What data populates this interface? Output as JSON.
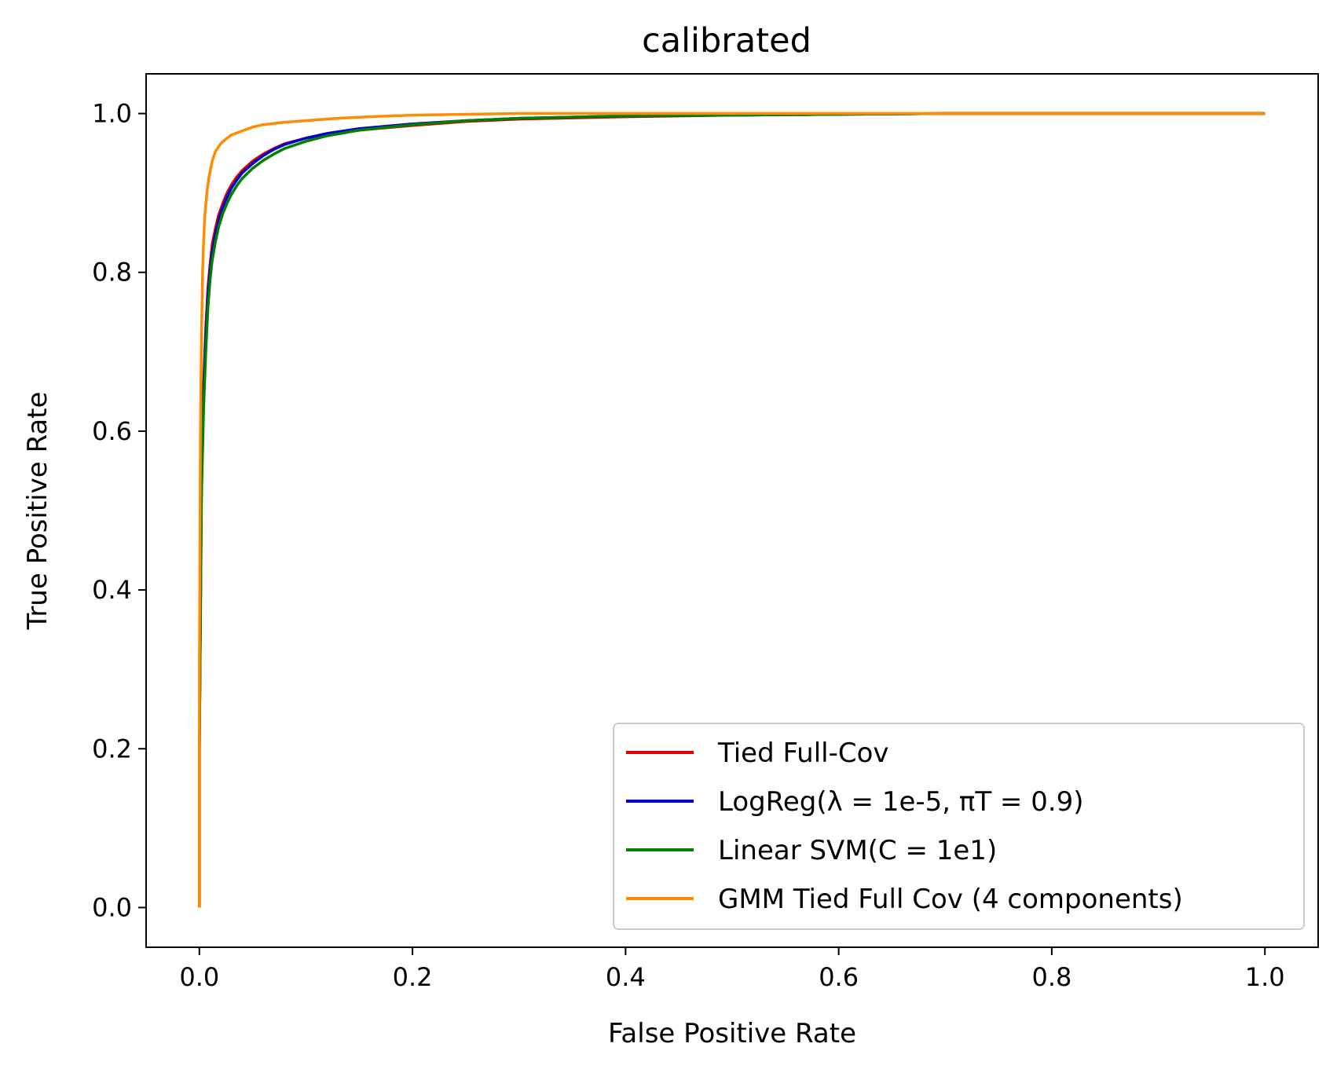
{
  "chart_data": {
    "type": "line",
    "title": "calibrated",
    "xlabel": "False Positive Rate",
    "ylabel": "True Positive Rate",
    "xlim": [
      -0.05,
      1.05
    ],
    "ylim": [
      -0.05,
      1.05
    ],
    "xticks": [
      0.0,
      0.2,
      0.4,
      0.6,
      0.8,
      1.0
    ],
    "xtick_labels": [
      "0.0",
      "0.2",
      "0.4",
      "0.6",
      "0.8",
      "1.0"
    ],
    "yticks": [
      0.0,
      0.2,
      0.4,
      0.6,
      0.8,
      1.0
    ],
    "ytick_labels": [
      "0.0",
      "0.2",
      "0.4",
      "0.6",
      "0.8",
      "1.0"
    ],
    "grid": false,
    "legend_position": "lower-right",
    "series": [
      {
        "name": "Tied Full-Cov",
        "color": "#e00000",
        "x": [
          0.0,
          0.0,
          0.002,
          0.004,
          0.006,
          0.008,
          0.01,
          0.012,
          0.015,
          0.018,
          0.022,
          0.026,
          0.03,
          0.035,
          0.04,
          0.05,
          0.06,
          0.07,
          0.08,
          0.1,
          0.12,
          0.15,
          0.2,
          0.25,
          0.3,
          0.4,
          0.5,
          0.6,
          0.7,
          0.8,
          0.9,
          1.0
        ],
        "y": [
          0.0,
          0.2,
          0.55,
          0.66,
          0.73,
          0.78,
          0.81,
          0.835,
          0.855,
          0.872,
          0.887,
          0.9,
          0.91,
          0.92,
          0.928,
          0.94,
          0.949,
          0.956,
          0.962,
          0.969,
          0.974,
          0.979,
          0.985,
          0.99,
          0.993,
          0.996,
          0.998,
          0.999,
          1.0,
          1.0,
          1.0,
          1.0
        ]
      },
      {
        "name": "LogReg(λ = 1e-5, πT = 0.9)",
        "color": "#0000d0",
        "x": [
          0.0,
          0.0,
          0.002,
          0.004,
          0.006,
          0.008,
          0.01,
          0.012,
          0.015,
          0.018,
          0.022,
          0.026,
          0.03,
          0.035,
          0.04,
          0.05,
          0.06,
          0.07,
          0.08,
          0.1,
          0.12,
          0.15,
          0.2,
          0.25,
          0.3,
          0.4,
          0.5,
          0.6,
          0.7,
          0.8,
          0.9,
          1.0
        ],
        "y": [
          0.0,
          0.2,
          0.54,
          0.65,
          0.72,
          0.77,
          0.8,
          0.825,
          0.848,
          0.866,
          0.882,
          0.895,
          0.906,
          0.916,
          0.925,
          0.937,
          0.947,
          0.955,
          0.961,
          0.969,
          0.975,
          0.981,
          0.987,
          0.991,
          0.994,
          0.997,
          0.998,
          0.999,
          1.0,
          1.0,
          1.0,
          1.0
        ]
      },
      {
        "name": "Linear SVM(C = 1e1)",
        "color": "#008000",
        "x": [
          0.0,
          0.0,
          0.002,
          0.004,
          0.006,
          0.008,
          0.01,
          0.012,
          0.015,
          0.018,
          0.022,
          0.026,
          0.03,
          0.035,
          0.04,
          0.05,
          0.06,
          0.07,
          0.08,
          0.1,
          0.12,
          0.15,
          0.2,
          0.25,
          0.3,
          0.4,
          0.5,
          0.6,
          0.7,
          0.8,
          0.9,
          1.0
        ],
        "y": [
          0.0,
          0.2,
          0.52,
          0.63,
          0.7,
          0.755,
          0.79,
          0.815,
          0.838,
          0.857,
          0.874,
          0.887,
          0.898,
          0.909,
          0.918,
          0.931,
          0.941,
          0.949,
          0.956,
          0.965,
          0.972,
          0.979,
          0.986,
          0.991,
          0.994,
          0.997,
          0.998,
          0.999,
          1.0,
          1.0,
          1.0,
          1.0
        ]
      },
      {
        "name": "GMM Tied Full Cov (4 components)",
        "color": "#ff8c00",
        "x": [
          0.0,
          0.0,
          0.001,
          0.002,
          0.003,
          0.004,
          0.005,
          0.007,
          0.009,
          0.012,
          0.015,
          0.02,
          0.025,
          0.03,
          0.04,
          0.05,
          0.06,
          0.08,
          0.1,
          0.13,
          0.16,
          0.2,
          0.25,
          0.3,
          0.4,
          0.5,
          0.6,
          0.7,
          0.8,
          0.9,
          1.0
        ],
        "y": [
          0.0,
          0.3,
          0.6,
          0.72,
          0.8,
          0.84,
          0.87,
          0.9,
          0.92,
          0.94,
          0.952,
          0.962,
          0.968,
          0.973,
          0.978,
          0.983,
          0.986,
          0.989,
          0.991,
          0.994,
          0.996,
          0.998,
          0.999,
          1.0,
          1.0,
          1.0,
          1.0,
          1.0,
          1.0,
          1.0,
          1.0
        ]
      }
    ]
  }
}
